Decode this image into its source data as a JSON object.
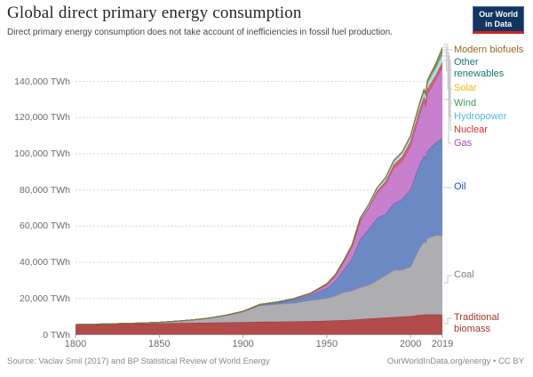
{
  "header": {
    "title": "Global direct primary energy consumption",
    "subtitle": "Direct primary energy consumption does not take account of inefficiencies in fossil fuel production.",
    "logo": {
      "line1": "Our World",
      "line2": "in Data"
    }
  },
  "footer": {
    "source": "Source: Vaclav Smil (2017) and BP Statistical Review of World Energy",
    "license": "OurWorldInData.org/energy • CC BY"
  },
  "chart_data": {
    "type": "area",
    "stacked": true,
    "title": "Global direct primary energy consumption",
    "unit": "TWh",
    "xlabel": "",
    "ylabel": "",
    "x_range": [
      1800,
      2019
    ],
    "ylim": [
      0,
      162000
    ],
    "grid": "dashed-horizontal",
    "legend_position": "right",
    "x": [
      1800,
      1810,
      1820,
      1830,
      1840,
      1850,
      1860,
      1870,
      1880,
      1890,
      1900,
      1910,
      1920,
      1930,
      1940,
      1950,
      1955,
      1960,
      1965,
      1970,
      1975,
      1980,
      1985,
      1990,
      1995,
      2000,
      2005,
      2008,
      2009,
      2010,
      2015,
      2019
    ],
    "series": [
      {
        "id": "traditional_biomass",
        "name": "Traditional biomass",
        "fill": "#B24C4A",
        "stroke": "#8F3635",
        "label_color": "#A13430",
        "values": [
          5556,
          5700,
          5850,
          6000,
          6150,
          6300,
          6450,
          6600,
          6700,
          6850,
          7000,
          7150,
          7250,
          7350,
          7500,
          7700,
          7850,
          8050,
          8300,
          8600,
          8900,
          9200,
          9500,
          9800,
          10000,
          10300,
          10900,
          11100,
          11150,
          11250,
          11250,
          11111
        ]
      },
      {
        "id": "coal",
        "name": "Coal",
        "fill": "#ADADB2",
        "stroke": "#87878D",
        "label_color": "#7E7E85",
        "values": [
          97,
          128,
          153,
          264,
          356,
          569,
          1061,
          1642,
          2542,
          3856,
          5728,
          9042,
          9650,
          10125,
          11586,
          12603,
          13600,
          15442,
          16100,
          17605,
          18600,
          20858,
          23300,
          25905,
          25900,
          27427,
          36400,
          40500,
          39700,
          41954,
          43786,
          43849
        ]
      },
      {
        "id": "oil",
        "name": "Oil",
        "fill": "#6D89C3",
        "stroke": "#4A66A0",
        "label_color": "#1D53A8",
        "values": [
          0,
          0,
          0,
          0,
          0,
          0,
          1,
          9,
          34,
          92,
          181,
          397,
          889,
          1756,
          2653,
          5444,
          8100,
          12170,
          17600,
          26734,
          30800,
          34474,
          33900,
          36889,
          38900,
          42881,
          46200,
          47500,
          46700,
          48246,
          51170,
          53620
        ]
      },
      {
        "id": "gas",
        "name": "Gas",
        "fill": "#C77FCE",
        "stroke": "#A34DAE",
        "label_color": "#A34CB0",
        "values": [
          0,
          0,
          0,
          0,
          0,
          0,
          0,
          0,
          3,
          36,
          64,
          142,
          233,
          603,
          875,
          2092,
          3100,
          4472,
          6600,
          10224,
          11800,
          14243,
          16500,
          19484,
          21300,
          23927,
          27200,
          29800,
          29100,
          31615,
          34750,
          39292
        ]
      },
      {
        "id": "nuclear",
        "name": "Nuclear",
        "fill": "#E06361",
        "stroke": "#C52F2F",
        "label_color": "#DC2C2C",
        "values": [
          0,
          0,
          0,
          0,
          0,
          0,
          0,
          0,
          0,
          0,
          0,
          0,
          0,
          0,
          0,
          0,
          0,
          72,
          98,
          224,
          420,
          684,
          1489,
          1908,
          2210,
          2450,
          2626,
          2600,
          2560,
          2630,
          2571,
          2796
        ]
      },
      {
        "id": "hydropower",
        "name": "Hydropower",
        "fill": "#ABDFE9",
        "stroke": "#58B6CE",
        "label_color": "#4FBBDC",
        "values": [
          0,
          0,
          0,
          0,
          0,
          0,
          0,
          1,
          2,
          9,
          17,
          33,
          58,
          125,
          219,
          336,
          494,
          689,
          918,
          1180,
          1450,
          1732,
          1955,
          2159,
          2440,
          2613,
          2900,
          3100,
          3200,
          3427,
          3884,
          4222
        ]
      },
      {
        "id": "wind",
        "name": "Wind",
        "fill": "#6FB573",
        "stroke": "#3D8E4C",
        "label_color": "#3D9C51",
        "values": [
          0,
          0,
          0,
          0,
          0,
          0,
          0,
          0,
          0,
          0,
          0,
          0,
          0,
          0,
          0,
          0,
          0,
          0,
          0,
          0,
          0,
          0,
          0,
          4,
          8,
          93,
          104,
          220,
          276,
          342,
          831,
          1430
        ]
      },
      {
        "id": "solar",
        "name": "Solar",
        "fill": "#F7CE63",
        "stroke": "#DFA63C",
        "label_color": "#EFB810",
        "values": [
          0,
          0,
          0,
          0,
          0,
          0,
          0,
          0,
          0,
          0,
          0,
          0,
          0,
          0,
          0,
          0,
          0,
          0,
          0,
          0,
          0,
          0,
          0,
          0,
          0,
          1,
          4,
          12,
          20,
          34,
          256,
          724
        ]
      },
      {
        "id": "other_renewables",
        "name": "Other renewables",
        "fill": "#65A693",
        "stroke": "#2F7A66",
        "label_color": "#15796B",
        "values": [
          0,
          0,
          0,
          0,
          0,
          0,
          0,
          0,
          0,
          0,
          0,
          0,
          0,
          0,
          0,
          0,
          0,
          0,
          15,
          24,
          38,
          60,
          94,
          132,
          176,
          250,
          305,
          350,
          370,
          434,
          545,
          652
        ]
      },
      {
        "id": "modern_biofuels",
        "name": "Modern biofuels",
        "fill": "#B6A05C",
        "stroke": "#8A6F2F",
        "label_color": "#8F6A1F",
        "values": [
          0,
          0,
          0,
          0,
          0,
          0,
          0,
          0,
          0,
          0,
          0,
          0,
          0,
          0,
          0,
          0,
          0,
          0,
          0,
          0,
          0,
          36,
          76,
          110,
          150,
          187,
          290,
          520,
          560,
          717,
          870,
          1102
        ]
      }
    ],
    "y_ticks": [
      {
        "value": 0,
        "label": "0 TWh"
      },
      {
        "value": 20000,
        "label": "20,000 TWh"
      },
      {
        "value": 40000,
        "label": "40,000 TWh"
      },
      {
        "value": 60000,
        "label": "60,000 TWh"
      },
      {
        "value": 80000,
        "label": "80,000 TWh"
      },
      {
        "value": 100000,
        "label": "100,000 TWh"
      },
      {
        "value": 120000,
        "label": "120,000 TWh"
      },
      {
        "value": 140000,
        "label": "140,000 TWh"
      }
    ],
    "x_ticks": [
      {
        "year": 1800,
        "label": "1800"
      },
      {
        "year": 1850,
        "label": "1850"
      },
      {
        "year": 1900,
        "label": "1900"
      },
      {
        "year": 1950,
        "label": "1950"
      },
      {
        "year": 2000,
        "label": "2000"
      },
      {
        "year": 2019,
        "label": "2019"
      }
    ]
  }
}
